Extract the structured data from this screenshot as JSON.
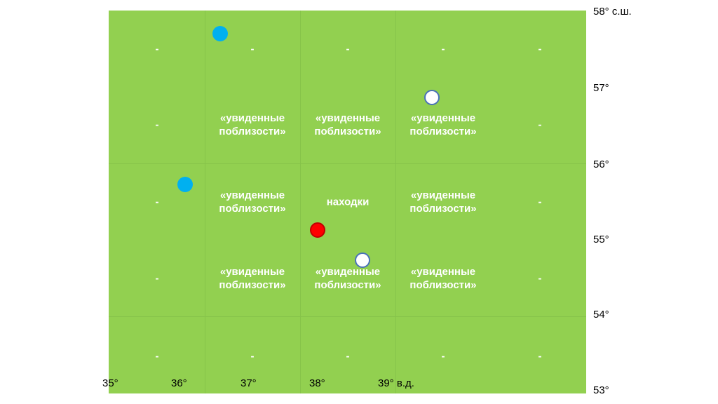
{
  "map": {
    "background_color": "#92d050",
    "latitude_labels": [
      "58° с.ш.",
      "57°",
      "56°",
      "55°",
      "54°",
      "53°"
    ],
    "longitude_labels": [
      "35°",
      "36°",
      "37°",
      "38°",
      "39° в.д."
    ],
    "cells": [
      [
        "-",
        "-",
        "-",
        "-",
        "-"
      ],
      [
        "-",
        "«увиденные\nпоблизости»",
        "«увиденные\nпоблизости»",
        "«увиденные\nпоблизости»",
        "-"
      ],
      [
        "-",
        "«увиденные\nпоблизости»",
        "находки",
        "«увиденные\nпоблизости»",
        "-"
      ],
      [
        "-",
        "«увиденные\nпоблизости»",
        "«увиденные\nпоблизости»",
        "«увиденные\nпоблизости»",
        "-"
      ],
      [
        "-",
        "-",
        "-",
        "-",
        "-"
      ]
    ],
    "markers": [
      {
        "kind": "blue",
        "color": "#00b0f0",
        "lon": 36.6,
        "lat": 57.75
      },
      {
        "kind": "blue",
        "color": "#00b0f0",
        "lon": 36.1,
        "lat": 55.75
      },
      {
        "kind": "white",
        "color": "#ffffff",
        "border": "#4a72b8",
        "lon": 39.65,
        "lat": 56.9
      },
      {
        "kind": "white",
        "color": "#ffffff",
        "border": "#4a72b8",
        "lon": 38.65,
        "lat": 54.75
      },
      {
        "kind": "red",
        "color": "#ff0000",
        "border": "#c00000",
        "lon": 38.0,
        "lat": 55.15
      }
    ]
  }
}
